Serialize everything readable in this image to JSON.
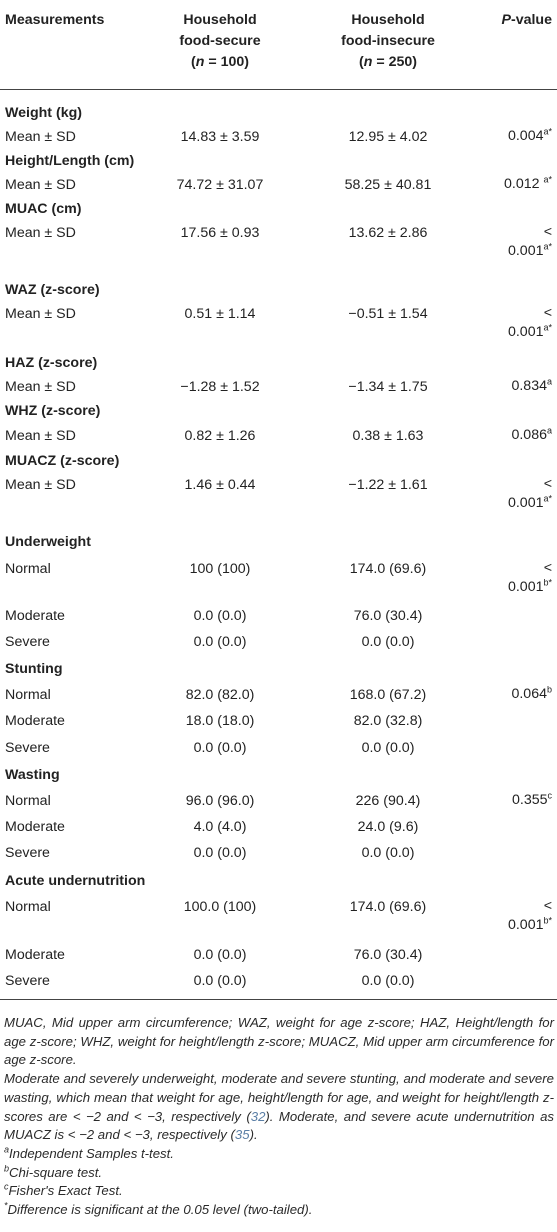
{
  "header": {
    "measurements": "Measurements",
    "col2_line1": "Household",
    "col2_line2": "food-secure",
    "col2_n": "n",
    "col2_eq": " = 100)",
    "col3_line1": "Household",
    "col3_line2": "food-insecure",
    "col3_n": "n",
    "col3_eq": " = 250)",
    "pvalue_p": "P",
    "pvalue_rest": "-value"
  },
  "rows": {
    "weight": {
      "label": "Weight (kg)",
      "stat": "Mean ± SD",
      "secure": "14.83 ± 3.59",
      "insecure": "12.95 ± 4.02",
      "p": "0.004",
      "sup": "a*"
    },
    "height": {
      "label": "Height/Length (cm)",
      "stat": "Mean ± SD",
      "secure": "74.72 ± 31.07",
      "insecure": "58.25 ± 40.81",
      "p": "0.012 ",
      "sup": "a*"
    },
    "muac": {
      "label": "MUAC (cm)",
      "stat": "Mean ± SD",
      "secure": "17.56 ± 0.93",
      "insecure": "13.62 ± 2.86",
      "p1": "<",
      "p2": "0.001",
      "sup": "a*"
    },
    "waz": {
      "label": "WAZ (z-score)",
      "stat": "Mean ± SD",
      "secure": "0.51 ± 1.14",
      "insecure": "−0.51 ± 1.54",
      "p1": "<",
      "p2": "0.001",
      "sup": "a*"
    },
    "haz": {
      "label": "HAZ (z-score)",
      "stat": "Mean ± SD",
      "secure": "−1.28 ± 1.52",
      "insecure": "−1.34 ± 1.75",
      "p": "0.834",
      "sup": "a"
    },
    "whz": {
      "label": "WHZ (z-score)",
      "stat": "Mean ± SD",
      "secure": "0.82 ± 1.26",
      "insecure": "0.38 ± 1.63",
      "p": "0.086",
      "sup": "a"
    },
    "muacz": {
      "label": "MUACZ (z-score)",
      "stat": "Mean ± SD",
      "secure": "1.46 ± 0.44",
      "insecure": "−1.22 ± 1.61",
      "p1": "<",
      "p2": "0.001",
      "sup": "a*"
    },
    "underweight": {
      "label": "Underweight",
      "normal": {
        "label": "Normal",
        "secure": "100 (100)",
        "insecure": "174.0 (69.6)",
        "p1": "<",
        "p2": "0.001",
        "sup": "b*"
      },
      "moderate": {
        "label": "Moderate",
        "secure": "0.0 (0.0)",
        "insecure": "76.0 (30.4)"
      },
      "severe": {
        "label": "Severe",
        "secure": "0.0 (0.0)",
        "insecure": "0.0 (0.0)"
      }
    },
    "stunting": {
      "label": "Stunting",
      "normal": {
        "label": "Normal",
        "secure": "82.0 (82.0)",
        "insecure": "168.0 (67.2)",
        "p": "0.064",
        "sup": "b"
      },
      "moderate": {
        "label": "Moderate",
        "secure": "18.0 (18.0)",
        "insecure": "82.0 (32.8)"
      },
      "severe": {
        "label": "Severe",
        "secure": "0.0 (0.0)",
        "insecure": "0.0 (0.0)"
      }
    },
    "wasting": {
      "label": "Wasting",
      "normal": {
        "label": "Normal",
        "secure": "96.0 (96.0)",
        "insecure": "226 (90.4)",
        "p": "0.355",
        "sup": "c"
      },
      "moderate": {
        "label": "Moderate",
        "secure": "4.0 (4.0)",
        "insecure": "24.0 (9.6)"
      },
      "severe": {
        "label": "Severe",
        "secure": "0.0 (0.0)",
        "insecure": "0.0 (0.0)"
      }
    },
    "acute": {
      "label": "Acute undernutrition",
      "normal": {
        "label": "Normal",
        "secure": "100.0 (100)",
        "insecure": "174.0 (69.6)",
        "p1": "<",
        "p2": "0.001",
        "sup": "b*"
      },
      "moderate": {
        "label": "Moderate",
        "secure": "0.0 (0.0)",
        "insecure": "76.0 (30.4)"
      },
      "severe": {
        "label": "Severe",
        "secure": "0.0 (0.0)",
        "insecure": "0.0 (0.0)"
      }
    }
  },
  "notes": {
    "abbrev": "MUAC, Mid upper arm circumference; WAZ, weight for age z-score; HAZ, Height/length for age z-score; WHZ, weight for height/length z-score; MUACZ, Mid upper arm circumference for age z-score.",
    "def_before": "Moderate and severely underweight, moderate and severe stunting, and moderate and severe wasting, which mean that weight for age, height/length for age, and weight for height/length z-scores are < −2 and < −3, respectively (",
    "ref1": "32",
    "def_middle": "). Moderate, and severe acute undernutrition as MUACZ is < −2 and < −3, respectively (",
    "ref2": "35",
    "def_after": ").",
    "a_sup": "a",
    "a_text": "Independent Samples t-test.",
    "b_sup": "b",
    "b_text": "Chi-square test.",
    "c_sup": "c",
    "c_text": "Fisher's Exact Test.",
    "star_sup": "*",
    "star_text": "Difference is significant at the 0.05 level (two-tailed).",
    "ref_color": "#5b7fa6"
  }
}
